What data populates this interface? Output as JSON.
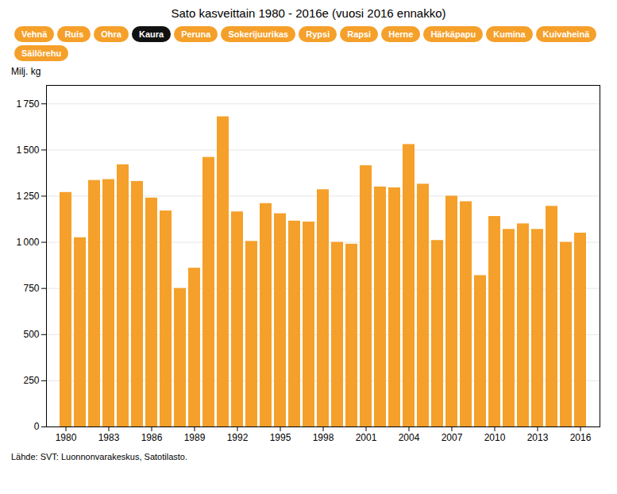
{
  "chart_data": {
    "type": "bar",
    "title": "Sato kasveittain 1980 - 2016e (vuosi 2016 ennakko)",
    "ylabel": "Milj. kg",
    "caption": "Lähde: SVT: Luonnonvarakeskus, Satotilasto.",
    "categories": [
      "1980",
      null,
      null,
      "1983",
      null,
      null,
      "1986",
      null,
      null,
      "1989",
      null,
      null,
      "1992",
      null,
      null,
      "1995",
      null,
      null,
      "1998",
      null,
      null,
      "2001",
      null,
      null,
      "2004",
      null,
      null,
      "2007",
      null,
      null,
      "2010",
      null,
      null,
      "2013",
      null,
      null,
      "2016"
    ],
    "values": [
      1270,
      1025,
      1335,
      1340,
      1420,
      1330,
      1240,
      1170,
      750,
      860,
      1460,
      1680,
      1165,
      1005,
      1210,
      1155,
      1115,
      1110,
      1285,
      1000,
      990,
      1415,
      1300,
      1295,
      1530,
      1315,
      1010,
      1250,
      1220,
      820,
      1140,
      1070,
      1100,
      1070,
      1195,
      1000,
      1050
    ],
    "color": "#f5a02a",
    "ylim": [
      0,
      1850
    ],
    "yticks": [
      0,
      250,
      500,
      750,
      {
        "value": 1000,
        "label": "1 000"
      },
      {
        "value": 1250,
        "label": "1 250"
      },
      {
        "value": 1500,
        "label": "1 500"
      },
      {
        "value": 1750,
        "label": "1 750"
      }
    ],
    "grid": true,
    "annotations": [
      {
        "text": "Vehnä",
        "color": "#f5a02a"
      },
      {
        "text": "Ruis",
        "color": "#f5a02a"
      },
      {
        "text": "Ohra",
        "color": "#f5a02a"
      },
      {
        "text": "Kaura",
        "color": "#111111"
      },
      {
        "text": "Peruna",
        "color": "#f5a02a"
      },
      {
        "text": "Sokerijuurikas",
        "color": "#f5a02a"
      },
      {
        "text": "Rypsi",
        "color": "#f5a02a"
      },
      {
        "text": "Rapsi",
        "color": "#f5a02a"
      },
      {
        "text": "Herne",
        "color": "#f5a02a"
      },
      {
        "text": "Härkäpapu",
        "color": "#f5a02a"
      },
      {
        "text": "Kumina",
        "color": "#f5a02a"
      },
      {
        "text": "Kuivaheinä",
        "color": "#f5a02a"
      },
      {
        "text": "Säilörehu",
        "color": "#f5a02a"
      }
    ]
  }
}
